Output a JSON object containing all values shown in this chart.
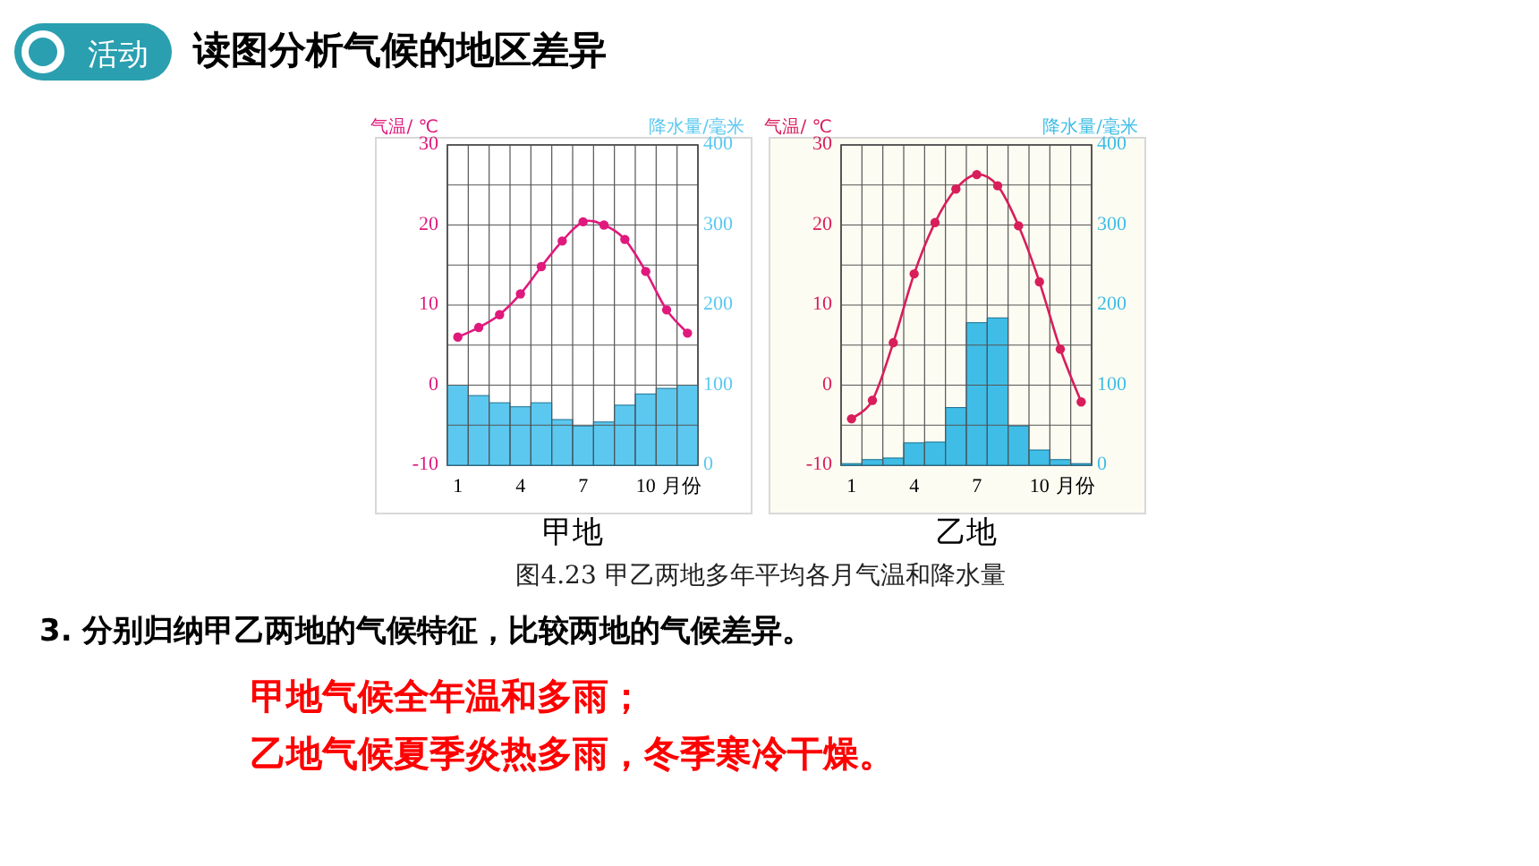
{
  "chart_data": [
    {
      "type": "bar",
      "title": "甲地",
      "categories": [
        "1",
        null,
        null,
        "4",
        null,
        null,
        "7",
        null,
        null,
        "10",
        null,
        null
      ],
      "xlabel": "月份",
      "ylabel": "气温/ ℃",
      "y2label": "降水量/毫米",
      "ylim": [
        -10,
        30
      ],
      "yticks": [
        -10,
        {
          "value": -5,
          "label": null
        },
        0,
        {
          "value": 5,
          "label": null
        },
        10,
        {
          "value": 15,
          "label": null
        },
        20,
        {
          "value": 25,
          "label": null
        },
        30
      ],
      "y2lim": [
        0,
        400
      ],
      "y2ticks": [
        0,
        100,
        200,
        300,
        400
      ],
      "grid": true,
      "marker": "circle",
      "series": [
        {
          "type": "bar",
          "axis": "y2",
          "color": "#5cc8f0",
          "values": [
            100,
            87,
            78,
            73,
            78,
            57,
            49,
            54,
            75,
            89,
            96,
            100
          ]
        },
        {
          "type": "line",
          "color": "#e0197d",
          "values": [
            6.0,
            7.2,
            8.8,
            11.4,
            14.8,
            18.0,
            20.4,
            20.0,
            18.2,
            14.2,
            9.4,
            6.5
          ]
        }
      ]
    },
    {
      "type": "bar",
      "title": "乙地",
      "categories": [
        "1",
        null,
        null,
        "4",
        null,
        null,
        "7",
        null,
        null,
        "10",
        null,
        null
      ],
      "xlabel": "月份",
      "ylabel": "气温/ ℃",
      "y2label": "降水量/毫米",
      "ylim": [
        -10,
        30
      ],
      "yticks": [
        -10,
        {
          "value": -5,
          "label": null
        },
        0,
        {
          "value": 5,
          "label": null
        },
        10,
        {
          "value": 15,
          "label": null
        },
        20,
        {
          "value": 25,
          "label": null
        },
        30
      ],
      "y2lim": [
        0,
        400
      ],
      "y2ticks": [
        0,
        100,
        200,
        300,
        400
      ],
      "grid": true,
      "marker": "circle",
      "series": [
        {
          "type": "bar",
          "axis": "y2",
          "color": "#3fbde6",
          "values": [
            2,
            7,
            9,
            28,
            29,
            72,
            178,
            184,
            49,
            19,
            7,
            2
          ]
        },
        {
          "type": "line",
          "color": "#d81e5b",
          "values": [
            -4.2,
            -1.9,
            5.3,
            13.9,
            20.3,
            24.5,
            26.3,
            24.9,
            19.9,
            12.9,
            4.5,
            -2.1
          ]
        }
      ]
    },
    {
      "type": "other",
      "title": "读图分析气候的地区差异",
      "annotations": [
        "活动",
        "图4.23 甲乙两地多年平均各月气温和降水量",
        "3. 分别归纳甲乙两地的气候特征，比较两地的气候差异。",
        "甲地气候全年温和多雨；",
        "乙地气候夏季炎热多雨，冬季寒冷干燥。"
      ]
    }
  ]
}
